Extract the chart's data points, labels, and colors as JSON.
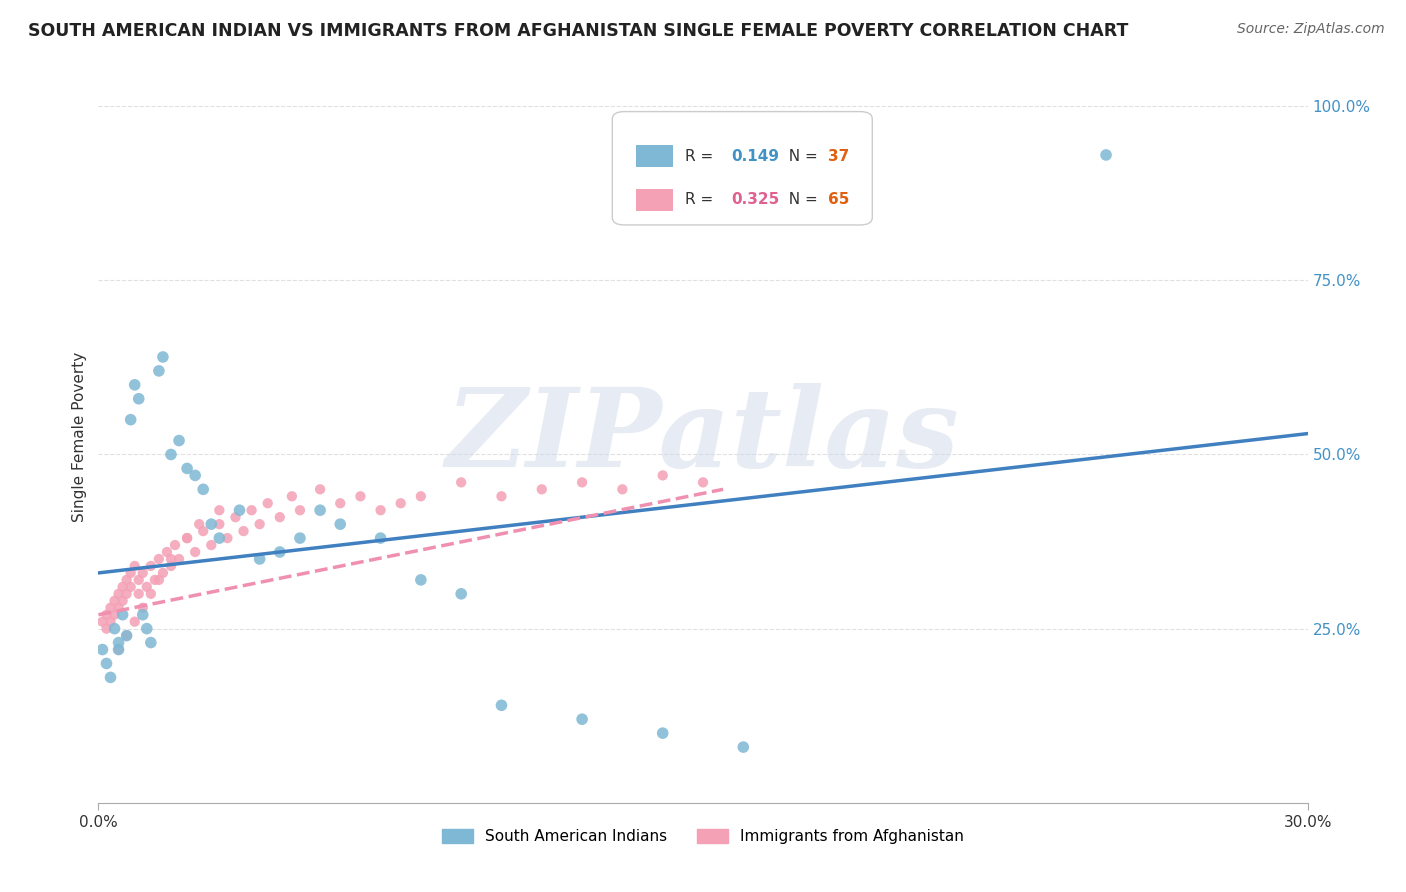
{
  "title": "SOUTH AMERICAN INDIAN VS IMMIGRANTS FROM AFGHANISTAN SINGLE FEMALE POVERTY CORRELATION CHART",
  "source": "Source: ZipAtlas.com",
  "ylabel": "Single Female Poverty",
  "y_ticks": [
    0.0,
    0.25,
    0.5,
    0.75,
    1.0
  ],
  "y_tick_labels": [
    "",
    "25.0%",
    "50.0%",
    "75.0%",
    "100.0%"
  ],
  "xlim": [
    0.0,
    0.3
  ],
  "ylim": [
    0.0,
    1.05
  ],
  "series1_color": "#7EB8D4",
  "series2_color": "#F4A0B5",
  "series1_label": "South American Indians",
  "series2_label": "Immigrants from Afghanistan",
  "R1": 0.149,
  "N1": 37,
  "R2": 0.325,
  "N2": 65,
  "legend_R1_color": "#4292c6",
  "legend_N1_color": "#e06010",
  "legend_R2_color": "#e06090",
  "legend_N2_color": "#e06010",
  "trendline1_color": "#4080C0",
  "trendline2_color": "#F090B0",
  "watermark_text": "ZIPatlas",
  "background_color": "#ffffff",
  "grid_color": "#dddddd",
  "scatter1_x": [
    0.001,
    0.002,
    0.003,
    0.004,
    0.005,
    0.005,
    0.006,
    0.007,
    0.008,
    0.009,
    0.01,
    0.011,
    0.012,
    0.013,
    0.015,
    0.016,
    0.018,
    0.02,
    0.022,
    0.024,
    0.026,
    0.028,
    0.03,
    0.035,
    0.04,
    0.045,
    0.05,
    0.055,
    0.06,
    0.07,
    0.08,
    0.09,
    0.1,
    0.12,
    0.14,
    0.16,
    0.25
  ],
  "scatter1_y": [
    0.22,
    0.2,
    0.18,
    0.25,
    0.23,
    0.22,
    0.27,
    0.24,
    0.55,
    0.6,
    0.58,
    0.27,
    0.25,
    0.23,
    0.62,
    0.64,
    0.5,
    0.52,
    0.48,
    0.47,
    0.45,
    0.4,
    0.38,
    0.42,
    0.35,
    0.36,
    0.38,
    0.42,
    0.4,
    0.38,
    0.32,
    0.3,
    0.14,
    0.12,
    0.1,
    0.08,
    0.93
  ],
  "scatter2_x": [
    0.001,
    0.002,
    0.002,
    0.003,
    0.003,
    0.004,
    0.004,
    0.005,
    0.005,
    0.006,
    0.006,
    0.007,
    0.007,
    0.008,
    0.008,
    0.009,
    0.01,
    0.01,
    0.011,
    0.012,
    0.013,
    0.014,
    0.015,
    0.016,
    0.017,
    0.018,
    0.019,
    0.02,
    0.022,
    0.024,
    0.026,
    0.028,
    0.03,
    0.032,
    0.034,
    0.036,
    0.038,
    0.04,
    0.042,
    0.045,
    0.048,
    0.05,
    0.055,
    0.06,
    0.065,
    0.07,
    0.075,
    0.08,
    0.09,
    0.1,
    0.11,
    0.12,
    0.13,
    0.14,
    0.15,
    0.005,
    0.007,
    0.009,
    0.011,
    0.013,
    0.015,
    0.018,
    0.022,
    0.025,
    0.03
  ],
  "scatter2_y": [
    0.26,
    0.27,
    0.25,
    0.28,
    0.26,
    0.29,
    0.27,
    0.3,
    0.28,
    0.31,
    0.29,
    0.32,
    0.3,
    0.33,
    0.31,
    0.34,
    0.32,
    0.3,
    0.33,
    0.31,
    0.34,
    0.32,
    0.35,
    0.33,
    0.36,
    0.34,
    0.37,
    0.35,
    0.38,
    0.36,
    0.39,
    0.37,
    0.4,
    0.38,
    0.41,
    0.39,
    0.42,
    0.4,
    0.43,
    0.41,
    0.44,
    0.42,
    0.45,
    0.43,
    0.44,
    0.42,
    0.43,
    0.44,
    0.46,
    0.44,
    0.45,
    0.46,
    0.45,
    0.47,
    0.46,
    0.22,
    0.24,
    0.26,
    0.28,
    0.3,
    0.32,
    0.35,
    0.38,
    0.4,
    0.42
  ],
  "trendline1_x0": 0.0,
  "trendline1_x1": 0.3,
  "trendline1_y0": 0.33,
  "trendline1_y1": 0.53,
  "trendline2_x0": 0.0,
  "trendline2_x1": 0.155,
  "trendline2_y0": 0.27,
  "trendline2_y1": 0.45
}
